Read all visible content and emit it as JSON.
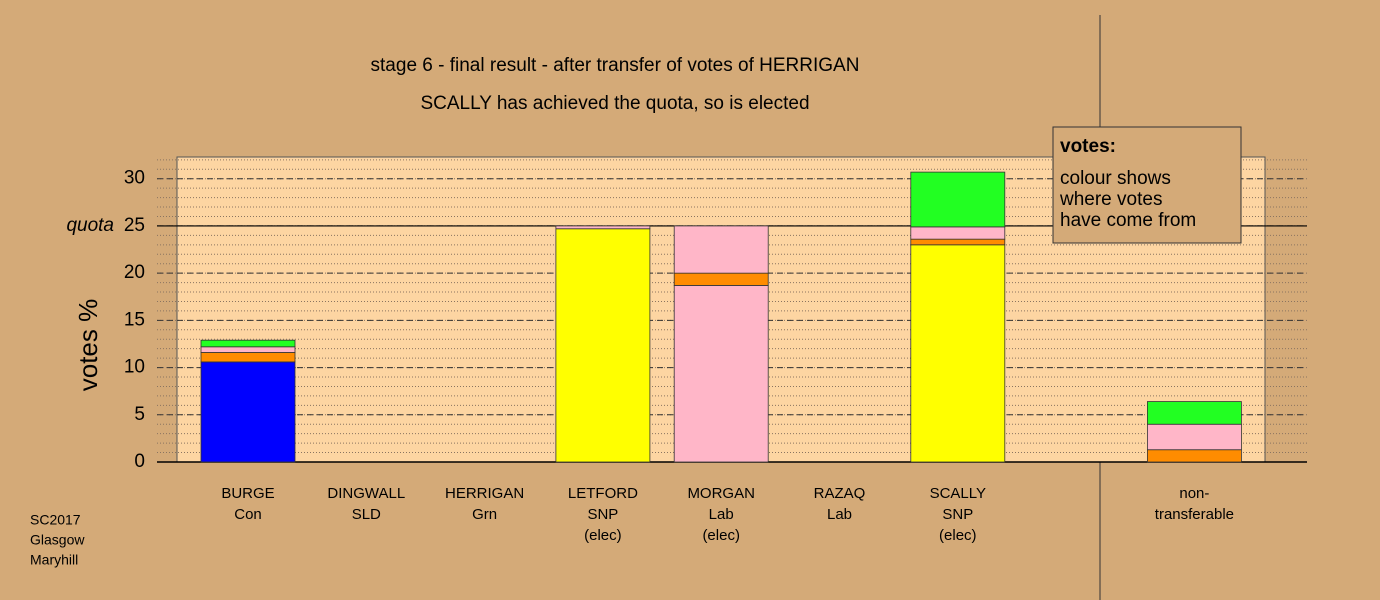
{
  "chart_data": {
    "type": "stacked_bar",
    "title": "stage 6 - final result - after transfer of votes of HERRIGAN",
    "subtitle": "SCALLY has achieved the quota, so is elected",
    "y_label": "votes %",
    "categories": [
      [
        "BURGE",
        "Con"
      ],
      [
        "DINGWALL",
        "SLD"
      ],
      [
        "HERRIGAN",
        "Grn"
      ],
      [
        "LETFORD",
        "SNP",
        "(elec)"
      ],
      [
        "MORGAN",
        "Lab",
        "(elec)"
      ],
      [
        "RAZAQ",
        "Lab"
      ],
      [
        "SCALLY",
        "SNP",
        "(elec)"
      ],
      [
        "non-",
        "transferable"
      ]
    ],
    "series": [
      {
        "color": "#0000ff",
        "values": [
          10.6,
          0,
          0,
          0,
          0,
          0,
          0,
          0
        ]
      },
      {
        "color": "#ffff00",
        "values": [
          0,
          0,
          0,
          24.7,
          0,
          0,
          23.0,
          0
        ]
      },
      {
        "color": "#ffb6c8",
        "values": [
          0,
          0,
          0,
          0,
          18.7,
          0,
          0,
          0
        ]
      },
      {
        "color": "#ff8c00",
        "values": [
          1.0,
          0,
          0,
          0,
          1.3,
          0,
          0.6,
          1.3
        ]
      },
      {
        "color": "#ffb6c8",
        "values": [
          0.6,
          0,
          0,
          0.3,
          5.0,
          0,
          1.3,
          2.7
        ]
      },
      {
        "color": "#22ff22",
        "values": [
          0.7,
          0,
          0,
          0,
          0,
          0,
          5.8,
          2.4
        ]
      }
    ],
    "ylim": [
      0,
      32.3
    ],
    "yticks": [
      0,
      5,
      10,
      15,
      20,
      25,
      30
    ],
    "quota": {
      "value": 25,
      "label": "quota"
    },
    "grid": true,
    "legend_box": {
      "title": "votes:",
      "lines": [
        "colour shows",
        "where votes",
        "have come from"
      ]
    },
    "source": [
      "SC2017",
      "Glasgow",
      "Maryhill"
    ]
  }
}
